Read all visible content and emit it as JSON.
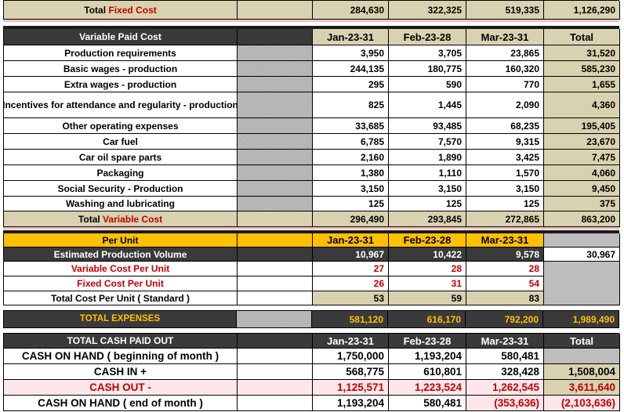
{
  "fixed_total": {
    "label_prefix": "Total ",
    "label_highlight": "Fixed Cost",
    "values": [
      "284,630",
      "322,325",
      "519,335",
      "1,126,290"
    ]
  },
  "variable": {
    "header": {
      "label": "Variable Paid Cost",
      "months": [
        "Jan-23-31",
        "Feb-23-28",
        "Mar-23-31"
      ],
      "total": "Total"
    },
    "rows": [
      {
        "label": "Production requirements",
        "values": [
          "3,950",
          "3,705",
          "23,865",
          "31,520"
        ]
      },
      {
        "label": "Basic wages - production",
        "values": [
          "244,135",
          "180,775",
          "160,320",
          "585,230"
        ]
      },
      {
        "label": "Extra wages - production",
        "values": [
          "295",
          "590",
          "770",
          "1,655"
        ]
      },
      {
        "label": "Incentives for attendance and regularity - production",
        "values": [
          "825",
          "1,445",
          "2,090",
          "4,360"
        ]
      },
      {
        "label": "Other operating expenses",
        "values": [
          "33,685",
          "93,485",
          "68,235",
          "195,405"
        ]
      },
      {
        "label": "Car fuel",
        "values": [
          "6,785",
          "7,570",
          "9,315",
          "23,670"
        ]
      },
      {
        "label": "Car oil spare parts",
        "values": [
          "2,160",
          "1,890",
          "3,425",
          "7,475"
        ]
      },
      {
        "label": "Packaging",
        "values": [
          "1,380",
          "1,110",
          "1,570",
          "4,060"
        ]
      },
      {
        "label": "Social Security - Production",
        "values": [
          "3,150",
          "3,150",
          "3,150",
          "9,450"
        ]
      },
      {
        "label": "Washing and lubricating",
        "values": [
          "125",
          "125",
          "125",
          "375"
        ]
      }
    ],
    "total": {
      "label_prefix": "Total ",
      "label_highlight": "Variable Cost",
      "values": [
        "296,490",
        "293,845",
        "272,865",
        "863,200"
      ]
    }
  },
  "per_unit": {
    "header": {
      "label": "Per Unit",
      "months": [
        "Jan-23-31",
        "Feb-23-28",
        "Mar-23-31"
      ]
    },
    "volume": {
      "label": "Estimated Production Volume",
      "values": [
        "10,967",
        "10,422",
        "9,578",
        "30,967"
      ]
    },
    "variable_cost": {
      "label": "Variable Cost Per Unit",
      "values": [
        "27",
        "28",
        "28"
      ]
    },
    "fixed_cost": {
      "label": "Fixed Cost Per Unit",
      "values": [
        "26",
        "31",
        "54"
      ]
    },
    "total_cost": {
      "label": "Total Cost Per Unit ( Standard )",
      "values": [
        "53",
        "59",
        "83"
      ]
    }
  },
  "total_expenses": {
    "label": "TOTAL EXPENSES",
    "values": [
      "581,120",
      "616,170",
      "792,200",
      "1,989,490"
    ]
  },
  "cash": {
    "header": {
      "label": "TOTAL CASH PAID OUT",
      "months": [
        "Jan-23-31",
        "Feb-23-28",
        "Mar-23-31"
      ],
      "total": "Total"
    },
    "rows": [
      {
        "label": "CASH ON HAND ( beginning of month )",
        "values": [
          "1,750,000",
          "1,193,204",
          "580,481"
        ]
      },
      {
        "label": "CASH IN +",
        "values": [
          "568,775",
          "610,801",
          "328,428",
          "1,508,004"
        ]
      },
      {
        "label": "CASH OUT -",
        "values": [
          "1,125,571",
          "1,223,524",
          "1,262,545",
          "3,611,640"
        ]
      },
      {
        "label": "CASH ON HAND ( end of month )",
        "values": [
          "1,193,204",
          "580,481",
          "(353,636)",
          "(2,103,636)"
        ]
      }
    ]
  },
  "colors": {
    "header_dark": "#3a3a3a",
    "khaki": "#d8d2b0",
    "gold": "#ffc000",
    "red_text": "#c00000",
    "pink_band": "#fde7ea"
  }
}
